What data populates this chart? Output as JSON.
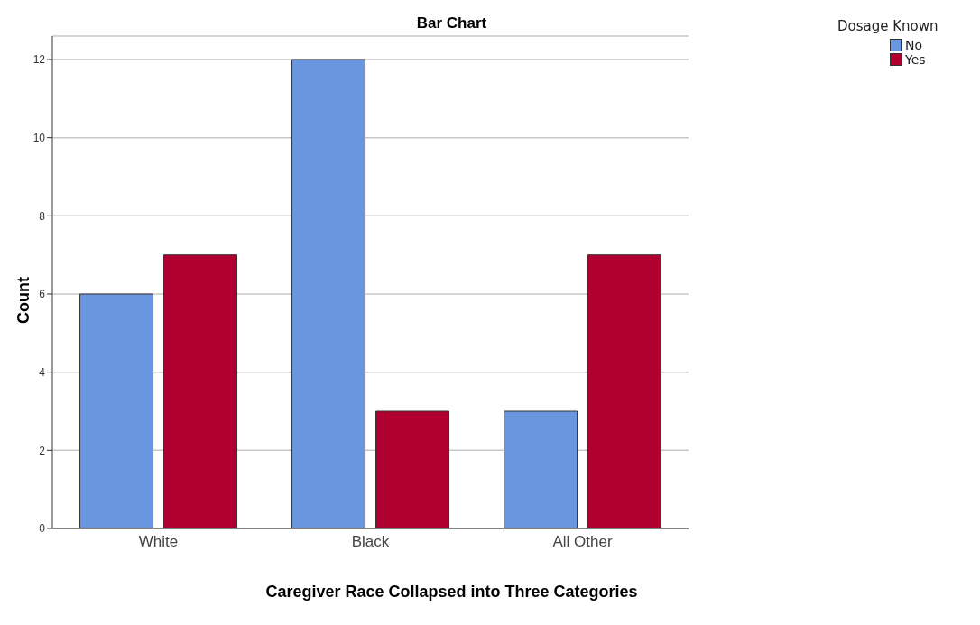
{
  "chart_data": {
    "type": "bar",
    "title": "Bar Chart",
    "xlabel": "Caregiver Race Collapsed into Three Categories",
    "ylabel": "Count",
    "legend_title": "Dosage Known",
    "categories": [
      "White",
      "Black",
      "All Other"
    ],
    "series": [
      {
        "name": "No",
        "color": "#6a96e0",
        "values": [
          6,
          12,
          3
        ]
      },
      {
        "name": "Yes",
        "color": "#b00030",
        "values": [
          7,
          3,
          7
        ]
      }
    ],
    "ylim": [
      0,
      12.6
    ],
    "yticks": [
      0,
      2,
      4,
      6,
      8,
      10,
      12
    ],
    "grid": "y",
    "legend": "top right"
  }
}
